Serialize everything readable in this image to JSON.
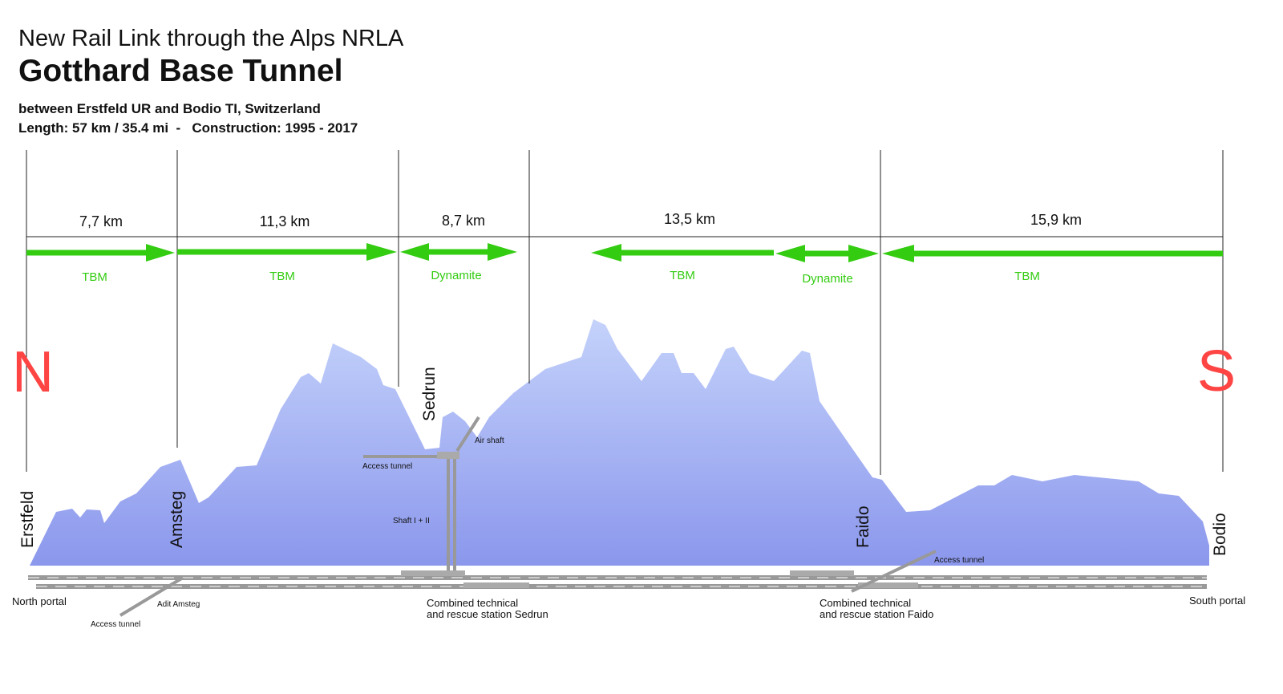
{
  "header": {
    "overline": "New Rail Link through the Alps NRLA",
    "title": "Gotthard Base Tunnel",
    "subtitle": "between Erstfeld UR and Bodio TI, Switzerland",
    "info": "Length: 57 km / 35.4 mi  -   Construction: 1995 - 2017"
  },
  "sections": [
    "7,7 km",
    "11,3 km",
    "8,7 km",
    "13,5 km",
    "15,9 km"
  ],
  "methods": [
    "TBM",
    "TBM",
    "Dynamite",
    "TBM",
    "Dynamite",
    "TBM"
  ],
  "compass": [
    "N",
    "S"
  ],
  "places": [
    "Erstfeld",
    "Amsteg",
    "Sedrun",
    "Faido",
    "Bodio"
  ],
  "labels": {
    "north_portal": "North portal",
    "south_portal": "South portal",
    "adit_amsteg": "Adit Amsteg",
    "access_amsteg": "Access tunnel",
    "access_sedrun": "Access tunnel",
    "air_shaft": "Air shaft",
    "shaft": "Shaft I + II",
    "access_faido": "Access tunnel",
    "station_sedrun": [
      "Combined technical",
      "and rescue station Sedrun"
    ],
    "station_faido": [
      "Combined technical",
      "and rescue station Faido"
    ]
  }
}
